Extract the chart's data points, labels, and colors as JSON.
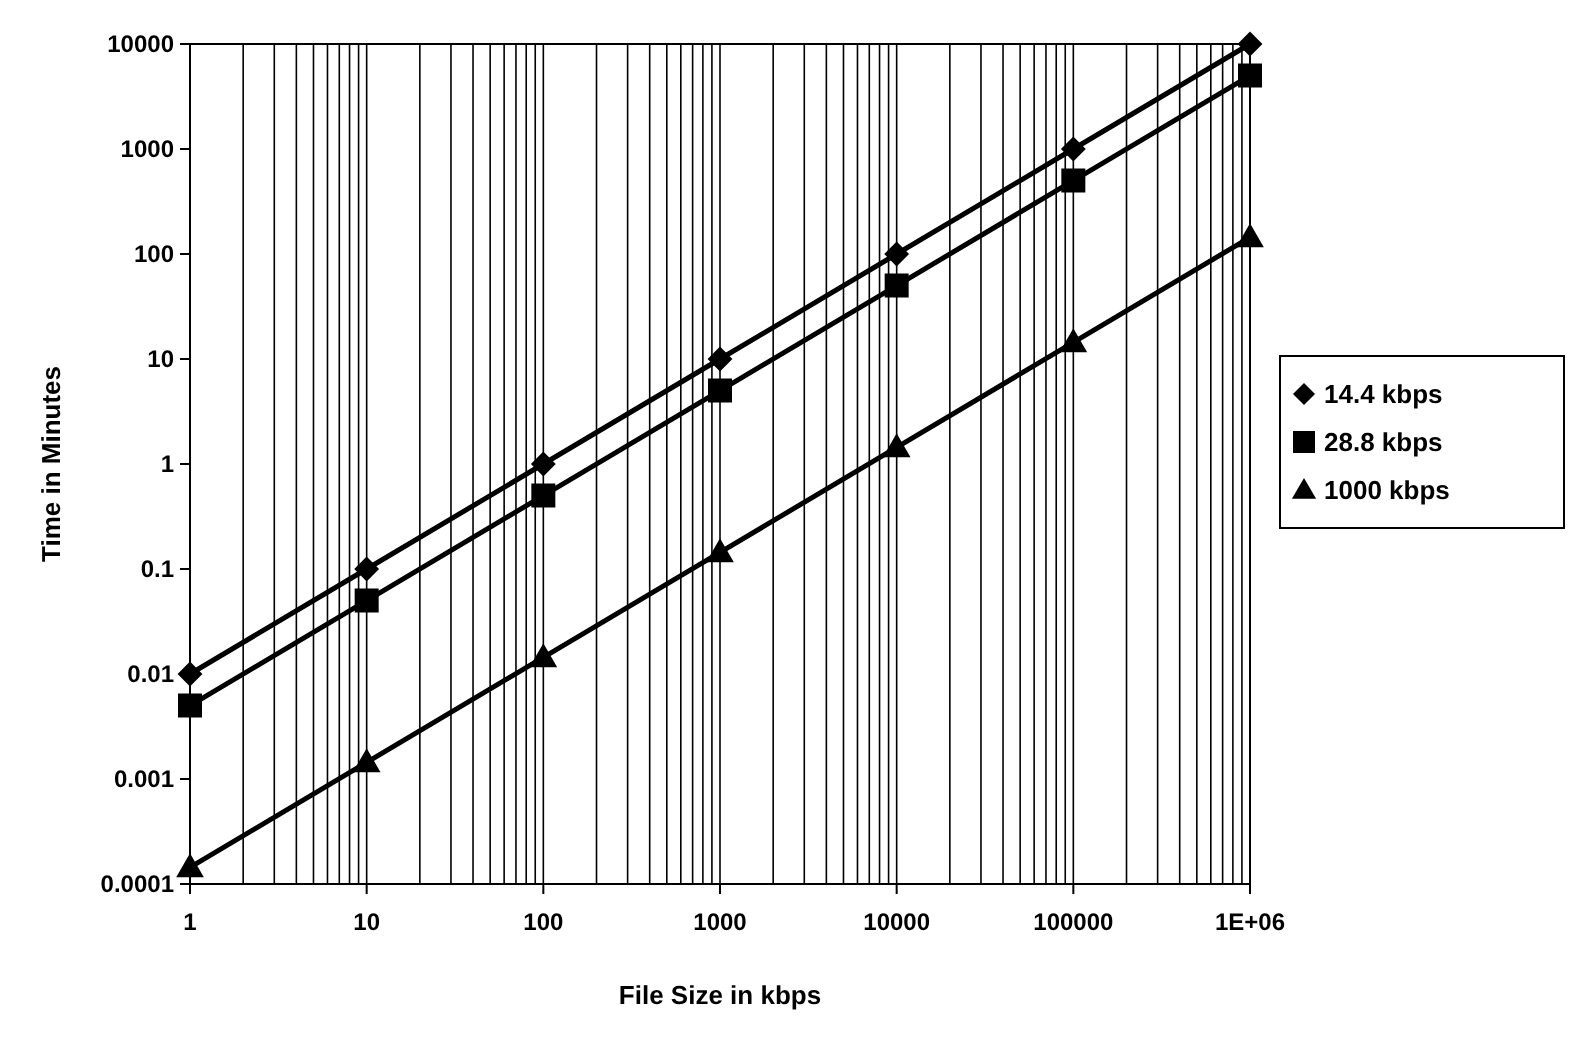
{
  "chart_data": {
    "type": "line",
    "xlabel": "File Size in kbps",
    "ylabel": "Time in Minutes",
    "x": [
      1,
      10,
      100,
      1000,
      10000,
      100000,
      1000000
    ],
    "series": [
      {
        "name": "14.4 kbps",
        "color": "#000000",
        "marker": "diamond",
        "values": [
          0.01,
          0.1,
          1,
          10,
          100,
          1000,
          10000
        ]
      },
      {
        "name": "28.8 kbps",
        "color": "#000000",
        "marker": "square",
        "values": [
          0.005,
          0.05,
          0.5,
          5,
          50,
          500,
          5000
        ]
      },
      {
        "name": "1000 kbps",
        "color": "#000000",
        "marker": "triangle",
        "values": [
          0.000144,
          0.00144,
          0.0144,
          0.144,
          1.44,
          14.4,
          144
        ]
      }
    ],
    "log": "xy",
    "xlim": [
      1,
      1000000
    ],
    "ylim": [
      0.0001,
      10000
    ],
    "xticks": [
      1,
      10,
      100,
      1000,
      10000,
      100000,
      {
        "value": 1000000,
        "label": "1E+06"
      }
    ],
    "yticks": [
      0.0001,
      0.001,
      0.01,
      0.1,
      1,
      10,
      100,
      1000,
      10000
    ],
    "grid": "x",
    "legend": "right",
    "line_style": "solid"
  }
}
